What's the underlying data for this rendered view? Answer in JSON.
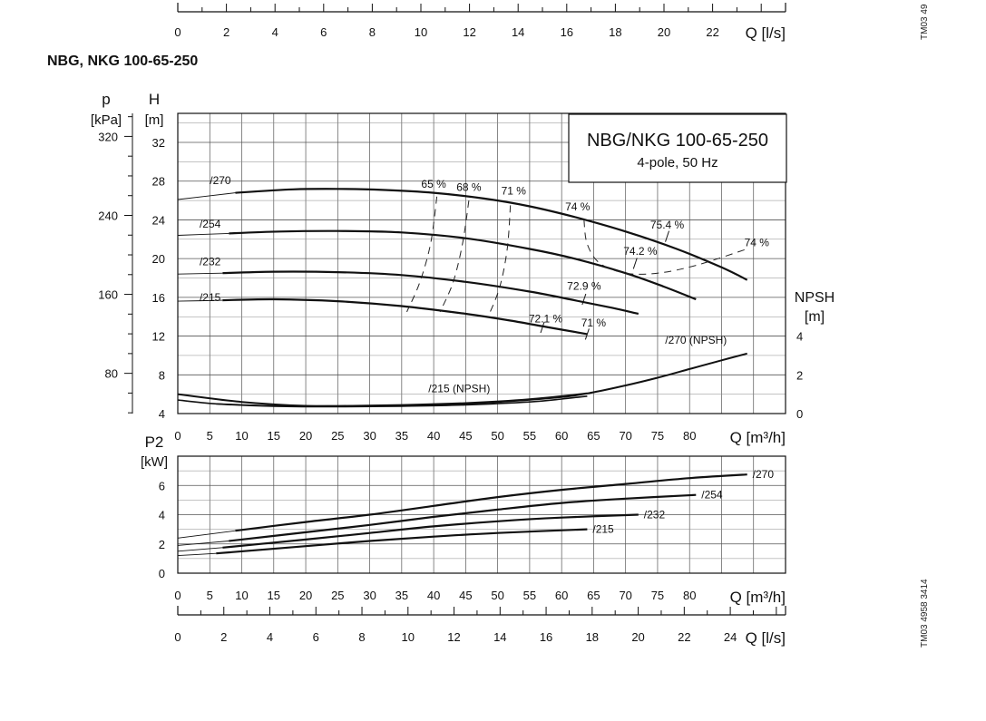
{
  "model_title": "NBG, NKG 100-65-250",
  "drawing_code_top": "TM03 49",
  "drawing_code_bottom": "TM03 4958 3414",
  "colors": {
    "curve": "#111111",
    "grid": "#555555",
    "grid_minor": "#888888",
    "background": "#ffffff"
  },
  "chart_data": [
    {
      "id": "flow_scale_top",
      "type": "axis",
      "xlabel": "Q [l/s]",
      "xlim": [
        0,
        25
      ],
      "x_ticks": [
        0,
        2,
        4,
        6,
        8,
        10,
        12,
        14,
        16,
        18,
        20,
        22
      ]
    },
    {
      "id": "head",
      "type": "line",
      "title": "NBG/NKG 100-65-250",
      "subtitle": "4-pole, 50 Hz",
      "xlabel": "Q [m³/h]",
      "xlim": [
        0,
        95
      ],
      "x_ticks": [
        0,
        5,
        10,
        15,
        20,
        25,
        30,
        35,
        40,
        45,
        50,
        55,
        60,
        65,
        70,
        75,
        80
      ],
      "ylabel": "H",
      "yunit": "[m]",
      "ylim": [
        4,
        35
      ],
      "y_ticks": [
        4,
        8,
        12,
        16,
        20,
        24,
        28,
        32
      ],
      "y2label": "p",
      "y2unit": "[kPa]",
      "y2_ticks": [
        80,
        160,
        240,
        320
      ],
      "npsh_label": "NPSH",
      "npsh_unit": "[m]",
      "npsh_ticks": [
        0,
        2,
        4
      ],
      "npsh_per_h_unit": 4,
      "series": [
        {
          "name": "/270",
          "label_pos": [
            5,
            27.7
          ],
          "x": [
            0,
            9,
            18,
            25,
            32,
            40,
            48,
            55,
            62,
            70,
            78,
            85,
            89
          ],
          "y": [
            26.1,
            26.8,
            27.15,
            27.2,
            27.1,
            26.8,
            26.2,
            25.4,
            24.3,
            22.8,
            21.0,
            19.1,
            17.8
          ]
        },
        {
          "name": "/254",
          "label_pos": [
            3.4,
            23.2
          ],
          "x": [
            0,
            8,
            16,
            25,
            35,
            45,
            55,
            62,
            70,
            76,
            81
          ],
          "y": [
            22.4,
            22.6,
            22.8,
            22.85,
            22.7,
            22.1,
            21.0,
            20.0,
            18.5,
            17.1,
            15.8
          ]
        },
        {
          "name": "/232",
          "label_pos": [
            3.4,
            19.3
          ],
          "x": [
            0,
            7,
            15,
            25,
            35,
            45,
            55,
            62,
            68,
            72
          ],
          "y": [
            18.4,
            18.5,
            18.65,
            18.6,
            18.3,
            17.6,
            16.6,
            15.7,
            14.9,
            14.3
          ]
        },
        {
          "name": "/215",
          "label_pos": [
            3.4,
            15.6
          ],
          "x": [
            0,
            7,
            15,
            25,
            35,
            45,
            52,
            58,
            64
          ],
          "y": [
            15.6,
            15.7,
            15.8,
            15.6,
            15.1,
            14.3,
            13.6,
            12.9,
            12.2
          ]
        }
      ],
      "npsh_series": [
        {
          "name": "/270 (NPSH)",
          "label_pos": [
            81,
            3.6
          ],
          "x": [
            0,
            10,
            20,
            30,
            40,
            50,
            60,
            65,
            70,
            75,
            80,
            85,
            89
          ],
          "y": [
            1.0,
            0.6,
            0.4,
            0.4,
            0.45,
            0.6,
            0.85,
            1.1,
            1.45,
            1.85,
            2.3,
            2.75,
            3.1
          ]
        },
        {
          "name": "/215 (NPSH)",
          "label_pos": [
            44,
            1.1
          ],
          "x": [
            0,
            6,
            15,
            25,
            35,
            45,
            55,
            60,
            64
          ],
          "y": [
            0.7,
            0.5,
            0.38,
            0.35,
            0.38,
            0.45,
            0.6,
            0.75,
            0.9
          ]
        },
        {
          "name": "",
          "label_pos": null,
          "x": [
            6,
            15,
            25,
            35,
            45,
            55,
            64
          ],
          "y": [
            0.5,
            0.4,
            0.4,
            0.45,
            0.55,
            0.75,
            1.05
          ]
        }
      ],
      "efficiency_lines": [
        {
          "label": "65 %",
          "label_pos": [
            40,
            27.3
          ],
          "x": [
            40.5,
            39.5,
            37.8,
            35.8
          ],
          "y": [
            26.4,
            21.5,
            17.5,
            14.5
          ]
        },
        {
          "label": "68 %",
          "label_pos": [
            45.5,
            27.0
          ],
          "x": [
            45.5,
            44.5,
            43.0,
            41.0
          ],
          "y": [
            26.0,
            21.5,
            17.5,
            14.5
          ]
        },
        {
          "label": "71 %",
          "label_pos": [
            52.5,
            26.6
          ],
          "x": [
            52.0,
            51.5,
            50.3,
            48.5
          ],
          "y": [
            25.5,
            21.0,
            17.0,
            14.0
          ]
        },
        {
          "label": "74 %",
          "label_pos": [
            62.5,
            25.0
          ],
          "x": [
            63.5,
            64,
            66,
            70,
            75,
            81,
            89
          ],
          "y": [
            24.0,
            21.5,
            19.5,
            18.5,
            18.5,
            19.3,
            21.0
          ]
        }
      ],
      "efficiency_markers": [
        {
          "label": "75.4 %",
          "label_pos": [
            76.5,
            23.1
          ],
          "x": 76.5,
          "y": 22.3
        },
        {
          "label": "74.2 %",
          "label_pos": [
            72.3,
            20.4
          ],
          "x": 71.5,
          "y": 19.5
        },
        {
          "label": "72.9 %",
          "label_pos": [
            63.5,
            16.8
          ],
          "x": 63.5,
          "y": 15.8
        },
        {
          "label": "72.1 %",
          "label_pos": [
            57.5,
            13.4
          ],
          "x": 57.0,
          "y": 12.9
        },
        {
          "label": "71 %",
          "label_pos": [
            65.0,
            13.0
          ],
          "x": 64.0,
          "y": 12.2
        },
        {
          "label": "74 %",
          "label_pos": [
            90.5,
            21.3
          ],
          "x": null,
          "y": null
        }
      ]
    },
    {
      "id": "power",
      "type": "line",
      "xlabel": "Q [m³/h]",
      "xlim": [
        0,
        95
      ],
      "x_ticks": [
        0,
        5,
        10,
        15,
        20,
        25,
        30,
        35,
        40,
        45,
        50,
        55,
        60,
        65,
        70,
        75,
        80
      ],
      "ylabel": "P2",
      "yunit": "[kW]",
      "ylim": [
        0,
        8
      ],
      "y_ticks": [
        0,
        2,
        4,
        6
      ],
      "series": [
        {
          "name": "/270",
          "x": [
            0,
            9,
            20,
            30,
            40,
            50,
            60,
            70,
            80,
            89
          ],
          "y": [
            2.4,
            2.9,
            3.5,
            4.0,
            4.6,
            5.2,
            5.7,
            6.1,
            6.5,
            6.75
          ]
        },
        {
          "name": "/254",
          "x": [
            0,
            8,
            20,
            30,
            40,
            50,
            60,
            70,
            81
          ],
          "y": [
            1.9,
            2.2,
            2.8,
            3.3,
            3.85,
            4.35,
            4.8,
            5.1,
            5.35
          ]
        },
        {
          "name": "/232",
          "x": [
            0,
            7,
            20,
            30,
            40,
            50,
            60,
            72
          ],
          "y": [
            1.5,
            1.75,
            2.3,
            2.75,
            3.2,
            3.55,
            3.8,
            4.0
          ]
        },
        {
          "name": "/215",
          "x": [
            0,
            6,
            20,
            30,
            40,
            50,
            64
          ],
          "y": [
            1.2,
            1.35,
            1.85,
            2.2,
            2.5,
            2.75,
            3.0
          ]
        }
      ]
    },
    {
      "id": "flow_scale_bottom",
      "type": "axis",
      "xlabel": "Q [l/s]",
      "xlim": [
        0,
        26.4
      ],
      "x_ticks": [
        0,
        2,
        4,
        6,
        8,
        10,
        12,
        14,
        16,
        18,
        20,
        22,
        24
      ]
    }
  ]
}
